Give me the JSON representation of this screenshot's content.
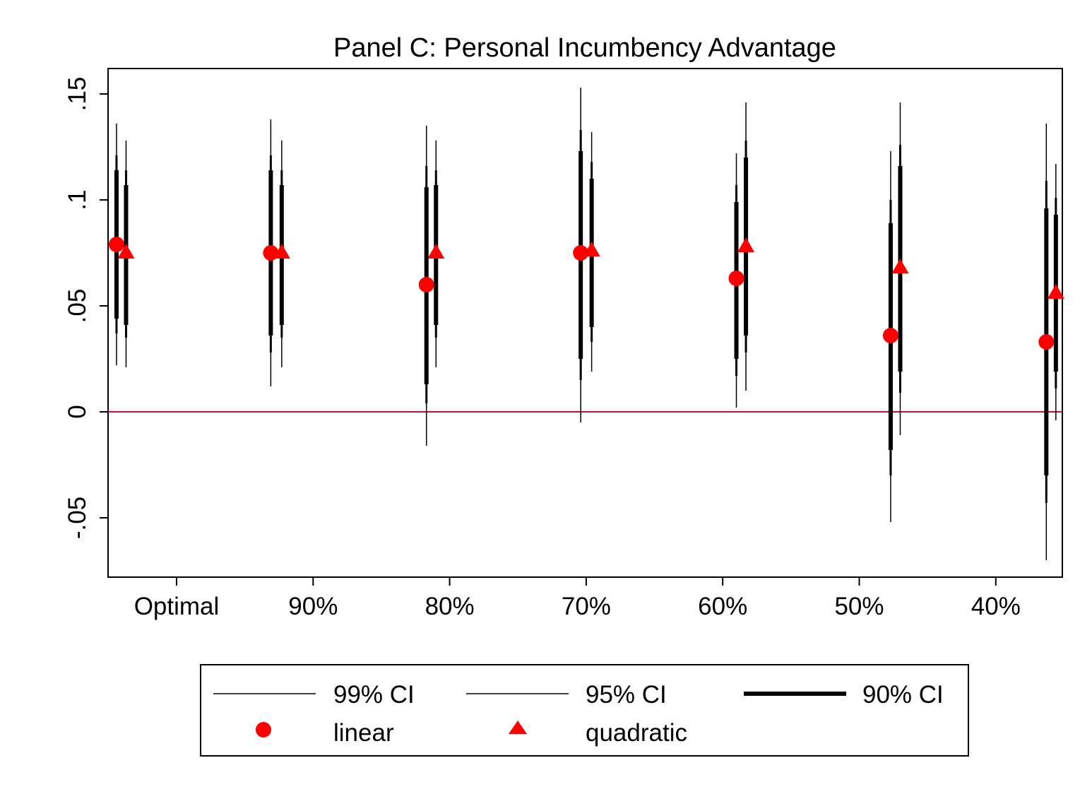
{
  "chart_data": {
    "type": "scatter",
    "title": "Panel C: Personal Incumbency Advantage",
    "xlabel": "",
    "ylabel": "",
    "categories": [
      "Optimal",
      "90%",
      "80%",
      "70%",
      "60%",
      "50%",
      "40%"
    ],
    "ylim": [
      -0.078,
      0.162
    ],
    "y_ticks": [
      {
        "value": -0.05,
        "label": "-.05"
      },
      {
        "value": 0,
        "label": "0"
      },
      {
        "value": 0.05,
        "label": ".05"
      },
      {
        "value": 0.1,
        "label": ".1"
      },
      {
        "value": 0.15,
        "label": ".15"
      }
    ],
    "reference_line": {
      "y": 0,
      "color": "#c8102e"
    },
    "grid": false,
    "legend_position": "bottom",
    "legend": {
      "ci99_label": "99% CI",
      "ci95_label": "95% CI",
      "ci90_label": "90% CI",
      "linear_label": "linear",
      "quadratic_label": "quadratic"
    },
    "marker_color": "#ff0000",
    "ci_color": "#000000",
    "series": [
      {
        "name": "linear",
        "marker": "circle",
        "points": [
          {
            "x_pos": -0.44,
            "estimate": 0.079,
            "ci90": [
              0.044,
              0.114
            ],
            "ci95": [
              0.037,
              0.121
            ],
            "ci99": [
              0.022,
              0.136
            ]
          },
          {
            "x_pos": 0.69,
            "estimate": 0.075,
            "ci90": [
              0.036,
              0.114
            ],
            "ci95": [
              0.028,
              0.121
            ],
            "ci99": [
              0.012,
              0.138
            ]
          },
          {
            "x_pos": 1.83,
            "estimate": 0.06,
            "ci90": [
              0.013,
              0.106
            ],
            "ci95": [
              0.004,
              0.116
            ],
            "ci99": [
              -0.016,
              0.135
            ]
          },
          {
            "x_pos": 2.96,
            "estimate": 0.075,
            "ci90": [
              0.025,
              0.123
            ],
            "ci95": [
              0.015,
              0.133
            ],
            "ci99": [
              -0.005,
              0.153
            ]
          },
          {
            "x_pos": 4.1,
            "estimate": 0.063,
            "ci90": [
              0.025,
              0.099
            ],
            "ci95": [
              0.017,
              0.107
            ],
            "ci99": [
              0.002,
              0.122
            ]
          },
          {
            "x_pos": 5.23,
            "estimate": 0.036,
            "ci90": [
              -0.018,
              0.089
            ],
            "ci95": [
              -0.03,
              0.1
            ],
            "ci99": [
              -0.052,
              0.123
            ]
          },
          {
            "x_pos": 6.37,
            "estimate": 0.033,
            "ci90": [
              -0.03,
              0.096
            ],
            "ci95": [
              -0.043,
              0.109
            ],
            "ci99": [
              -0.07,
              0.136
            ]
          }
        ]
      },
      {
        "name": "quadratic",
        "marker": "triangle",
        "points": [
          {
            "x_pos": -0.37,
            "estimate": 0.075,
            "ci90": [
              0.041,
              0.107
            ],
            "ci95": [
              0.035,
              0.114
            ],
            "ci99": [
              0.021,
              0.128
            ]
          },
          {
            "x_pos": 0.77,
            "estimate": 0.075,
            "ci90": [
              0.041,
              0.107
            ],
            "ci95": [
              0.035,
              0.114
            ],
            "ci99": [
              0.021,
              0.128
            ]
          },
          {
            "x_pos": 1.9,
            "estimate": 0.075,
            "ci90": [
              0.041,
              0.107
            ],
            "ci95": [
              0.035,
              0.114
            ],
            "ci99": [
              0.021,
              0.128
            ]
          },
          {
            "x_pos": 3.04,
            "estimate": 0.076,
            "ci90": [
              0.04,
              0.11
            ],
            "ci95": [
              0.033,
              0.118
            ],
            "ci99": [
              0.019,
              0.132
            ]
          },
          {
            "x_pos": 4.17,
            "estimate": 0.078,
            "ci90": [
              0.036,
              0.12
            ],
            "ci95": [
              0.028,
              0.128
            ],
            "ci99": [
              0.01,
              0.146
            ]
          },
          {
            "x_pos": 5.3,
            "estimate": 0.068,
            "ci90": [
              0.019,
              0.116
            ],
            "ci95": [
              0.009,
              0.126
            ],
            "ci99": [
              -0.011,
              0.146
            ]
          },
          {
            "x_pos": 6.44,
            "estimate": 0.056,
            "ci90": [
              0.019,
              0.093
            ],
            "ci95": [
              0.011,
              0.101
            ],
            "ci99": [
              -0.004,
              0.117
            ]
          }
        ]
      }
    ]
  }
}
